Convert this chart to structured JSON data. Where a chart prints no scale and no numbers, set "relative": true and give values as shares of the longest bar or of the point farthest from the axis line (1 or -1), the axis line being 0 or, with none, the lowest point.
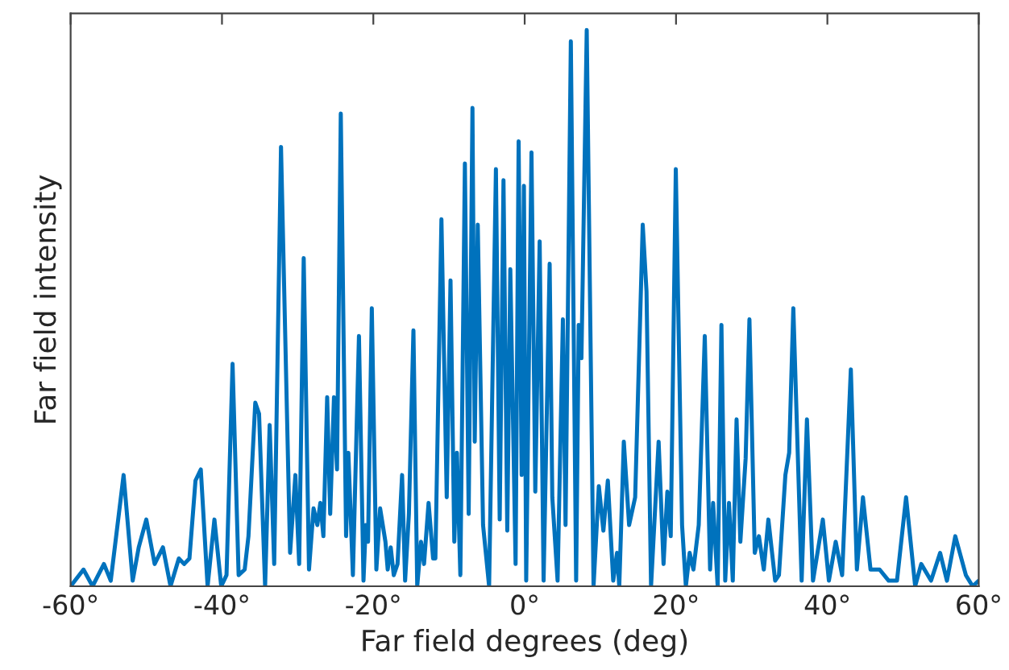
{
  "chart_data": {
    "type": "line",
    "relative": true,
    "xlabel": "Far field degrees (deg)",
    "ylabel": "Far field intensity",
    "xlim": [
      -60,
      60
    ],
    "xticks": [
      {
        "value": -60,
        "label": "-60°"
      },
      {
        "value": -40,
        "label": "-40°"
      },
      {
        "value": -20,
        "label": "-20°"
      },
      {
        "value": 0,
        "label": "0°"
      },
      {
        "value": 20,
        "label": "20°"
      },
      {
        "value": 40,
        "label": "40°"
      },
      {
        "value": 60,
        "label": "60°"
      }
    ],
    "grid": false,
    "line_style": "solid",
    "marker": "none",
    "series": [
      {
        "color": "#0072bd",
        "x": [
          -60,
          -58.3,
          -57.1,
          -55.6,
          -54.7,
          -53.0,
          -51.8,
          -51.0,
          -50.0,
          -48.9,
          -47.8,
          -46.8,
          -45.7,
          -45.0,
          -44.3,
          -43.5,
          -42.8,
          -41.9,
          -41.0,
          -40.1,
          -39.4,
          -38.6,
          -37.8,
          -37.0,
          -36.5,
          -35.6,
          -35.1,
          -34.3,
          -33.7,
          -33.1,
          -32.2,
          -31.0,
          -30.3,
          -29.8,
          -29.2,
          -28.5,
          -27.9,
          -27.4,
          -27.0,
          -26.6,
          -26.1,
          -25.7,
          -25.2,
          -24.8,
          -24.3,
          -23.6,
          -23.3,
          -22.7,
          -21.9,
          -21.3,
          -21.0,
          -20.7,
          -20.2,
          -19.6,
          -19.1,
          -18.4,
          -18.1,
          -17.7,
          -17.3,
          -16.8,
          -16.2,
          -15.8,
          -15.3,
          -14.7,
          -14.2,
          -13.7,
          -13.3,
          -12.7,
          -12.1,
          -11.8,
          -11.0,
          -10.3,
          -9.8,
          -9.3,
          -8.95,
          -8.5,
          -7.9,
          -7.4,
          -6.9,
          -6.6,
          -6.2,
          -5.5,
          -4.7,
          -3.8,
          -3.3,
          -2.8,
          -2.3,
          -1.9,
          -1.2,
          -0.8,
          -0.4,
          -0.1,
          0.2,
          0.9,
          1.4,
          1.98,
          2.5,
          3.3,
          3.65,
          4.35,
          5.05,
          5.4,
          6.1,
          6.8,
          7.14,
          7.5,
          8.2,
          9.1,
          9.8,
          10.4,
          10.99,
          11.7,
          12.2,
          12.5,
          13.1,
          13.8,
          14.6,
          15.6,
          16.1,
          16.7,
          17.7,
          18.35,
          18.85,
          19.3,
          19.97,
          20.8,
          21.3,
          21.8,
          22.3,
          23.0,
          23.8,
          24.5,
          24.9,
          25.5,
          26.0,
          26.5,
          27.0,
          27.5,
          28.0,
          28.5,
          29.2,
          29.7,
          30.4,
          30.95,
          31.6,
          32.2,
          33.1,
          33.6,
          34.45,
          34.95,
          35.5,
          36.6,
          37.3,
          38.1,
          39.4,
          40.2,
          41.1,
          41.95,
          43.1,
          43.9,
          44.7,
          45.7,
          46.9,
          48.1,
          49.2,
          50.4,
          51.6,
          52.4,
          53.7,
          54.9,
          55.8,
          56.9,
          58.3,
          59.2,
          60.0
        ],
        "values": [
          0,
          0.03,
          0,
          0.04,
          0.01,
          0.2,
          0.01,
          0.07,
          0.12,
          0.04,
          0.07,
          0,
          0.05,
          0.04,
          0.05,
          0.19,
          0.21,
          0,
          0.12,
          0,
          0.02,
          0.4,
          0.02,
          0.03,
          0.09,
          0.33,
          0.31,
          0,
          0.29,
          0.04,
          0.79,
          0.06,
          0.2,
          0.04,
          0.59,
          0.03,
          0.14,
          0.11,
          0.15,
          0.09,
          0.34,
          0.13,
          0.34,
          0.21,
          0.85,
          0.09,
          0.24,
          0.02,
          0.45,
          0.01,
          0.11,
          0.08,
          0.5,
          0.03,
          0.14,
          0.08,
          0.03,
          0.07,
          0.02,
          0.04,
          0.2,
          0.01,
          0.13,
          0.46,
          0,
          0.08,
          0.04,
          0.15,
          0.05,
          0.05,
          0.66,
          0.16,
          0.55,
          0.08,
          0.24,
          0.02,
          0.76,
          0.13,
          0.86,
          0.26,
          0.65,
          0.11,
          0,
          0.75,
          0.12,
          0.73,
          0.1,
          0.57,
          0.04,
          0.8,
          0.2,
          0.72,
          0.01,
          0.78,
          0.17,
          0.62,
          0.01,
          0.58,
          0.16,
          0.01,
          0.48,
          0.11,
          0.98,
          0.01,
          0.47,
          0.41,
          1.0,
          0,
          0.18,
          0.1,
          0.19,
          0.01,
          0.06,
          0,
          0.26,
          0.11,
          0.16,
          0.65,
          0.53,
          0,
          0.26,
          0.04,
          0.17,
          0.09,
          0.75,
          0.11,
          0,
          0.06,
          0.03,
          0.11,
          0.45,
          0.03,
          0.15,
          0,
          0.47,
          0.01,
          0.15,
          0.01,
          0.3,
          0.08,
          0.23,
          0.48,
          0.06,
          0.09,
          0.03,
          0.12,
          0.01,
          0.02,
          0.2,
          0.24,
          0.5,
          0.01,
          0.3,
          0.01,
          0.12,
          0.01,
          0.08,
          0.02,
          0.39,
          0.03,
          0.16,
          0.03,
          0.03,
          0.01,
          0.01,
          0.16,
          0,
          0.04,
          0.01,
          0.06,
          0.01,
          0.09,
          0.02,
          0,
          0.01
        ]
      }
    ]
  }
}
